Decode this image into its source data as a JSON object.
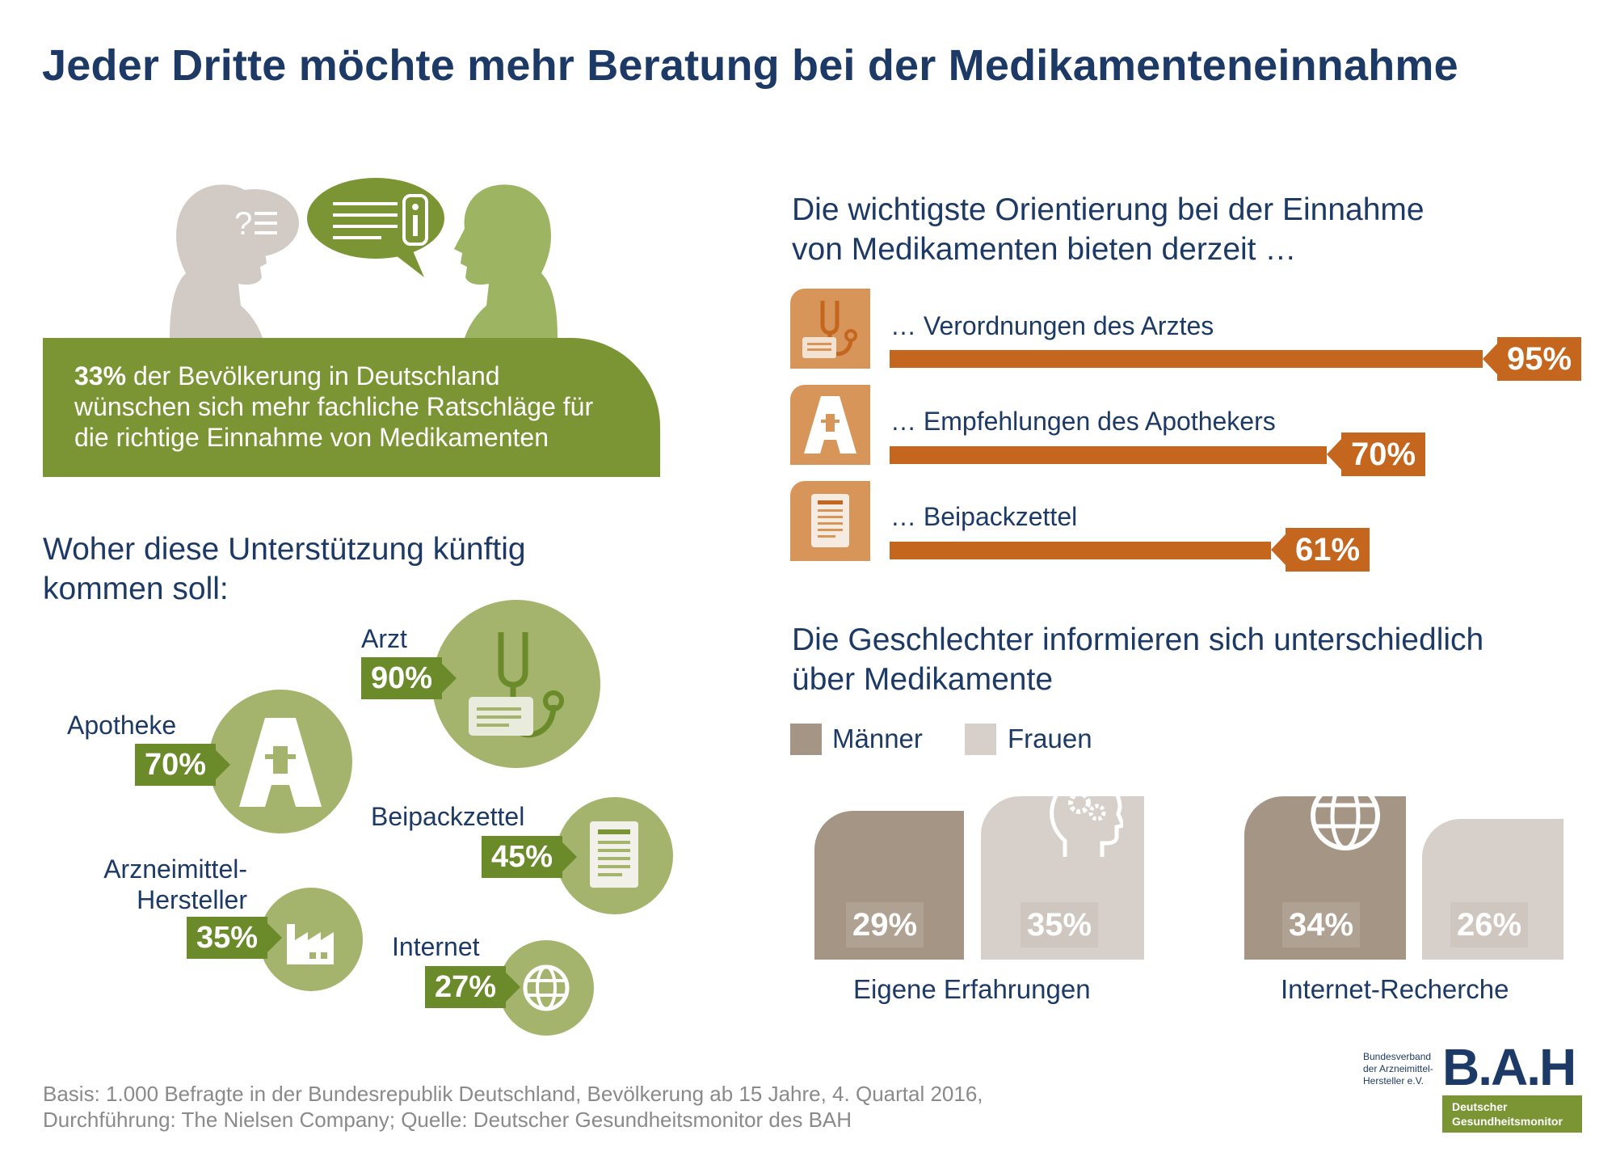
{
  "title": "Jeder Dritte möchte mehr Beratung bei der Medikamenteneinnahme",
  "intro": {
    "highlight": "33%",
    "line1_rest": " der Bevölkerung in Deutschland",
    "line2": "wünschen sich mehr fachliche Ratschläge für",
    "line3": "die richtige Einnahme von Medikamenten"
  },
  "support": {
    "heading_line1": "Woher diese Unterstützung künftig",
    "heading_line2": "kommen soll:",
    "items": [
      {
        "label": "Arzt",
        "value": "90%",
        "icon": "stethoscope-icon"
      },
      {
        "label": "Apotheke",
        "value": "70%",
        "icon": "pharmacy-icon"
      },
      {
        "label": "Beipackzettel",
        "value": "45%",
        "icon": "leaflet-icon"
      },
      {
        "label_line1": "Arzneimittel-",
        "label_line2": "Hersteller",
        "value": "35%",
        "icon": "factory-icon"
      },
      {
        "label": "Internet",
        "value": "27%",
        "icon": "globe-icon"
      }
    ]
  },
  "orientation": {
    "heading_line1": "Die wichtigste Orientierung bei der Einnahme",
    "heading_line2": "von Medikamenten bieten derzeit …",
    "items": [
      {
        "label": "… Verordnungen des Arztes",
        "value": "95%",
        "icon": "stethoscope-icon"
      },
      {
        "label": "… Empfehlungen des Apothekers",
        "value": "70%",
        "icon": "pharmacy-icon"
      },
      {
        "label": "… Beipackzettel",
        "value": "61%",
        "icon": "leaflet-icon"
      }
    ]
  },
  "gender": {
    "heading_line1": "Die Geschlechter informieren sich unterschiedlich",
    "heading_line2": "über Medikamente",
    "legend": {
      "men": "Männer",
      "women": "Frauen"
    },
    "groups": [
      {
        "label": "Eigene Erfahrungen",
        "men": "29%",
        "women": "35%",
        "icon": "head-gears-icon"
      },
      {
        "label": "Internet-Recherche",
        "men": "34%",
        "women": "26%",
        "icon": "globe-icon"
      }
    ]
  },
  "footer": {
    "line1": "Basis: 1.000 Befragte in der Bundesrepublik Deutschland, Bevölkerung ab 15 Jahre, 4. Quartal 2016,",
    "line2": "Durchführung: The Nielsen Company; Quelle: Deutscher Gesundheitsmonitor des BAH"
  },
  "logo": {
    "org_line1": "Bundesverband",
    "org_line2": "der Arzneimittel-",
    "org_line3": "Hersteller e.V.",
    "mark": "B.A.H",
    "sub_line1": "Deutscher",
    "sub_line2": "Gesundheitsmonitor"
  },
  "colors": {
    "navy": "#1d3a66",
    "green": "#7b9534",
    "orange": "#c4661e",
    "men": "#a49585",
    "women": "#d7d0ca"
  },
  "chart_data": [
    {
      "type": "bar",
      "title": "Die wichtigste Orientierung bei der Einnahme von Medikamenten bieten derzeit …",
      "categories": [
        "… Verordnungen des Arztes",
        "… Empfehlungen des Apothekers",
        "… Beipackzettel"
      ],
      "values": [
        95,
        70,
        61
      ],
      "ylim": [
        0,
        100
      ]
    },
    {
      "type": "bar",
      "title": "Woher diese Unterstützung künftig kommen soll:",
      "categories": [
        "Arzt",
        "Apotheke",
        "Beipackzettel",
        "Arzneimittel-Hersteller",
        "Internet"
      ],
      "values": [
        90,
        70,
        45,
        35,
        27
      ]
    },
    {
      "type": "bar",
      "title": "Die Geschlechter informieren sich unterschiedlich über Medikamente",
      "categories": [
        "Eigene Erfahrungen",
        "Internet-Recherche"
      ],
      "series": [
        {
          "name": "Männer",
          "values": [
            29,
            34
          ]
        },
        {
          "name": "Frauen",
          "values": [
            35,
            26
          ]
        }
      ]
    }
  ]
}
